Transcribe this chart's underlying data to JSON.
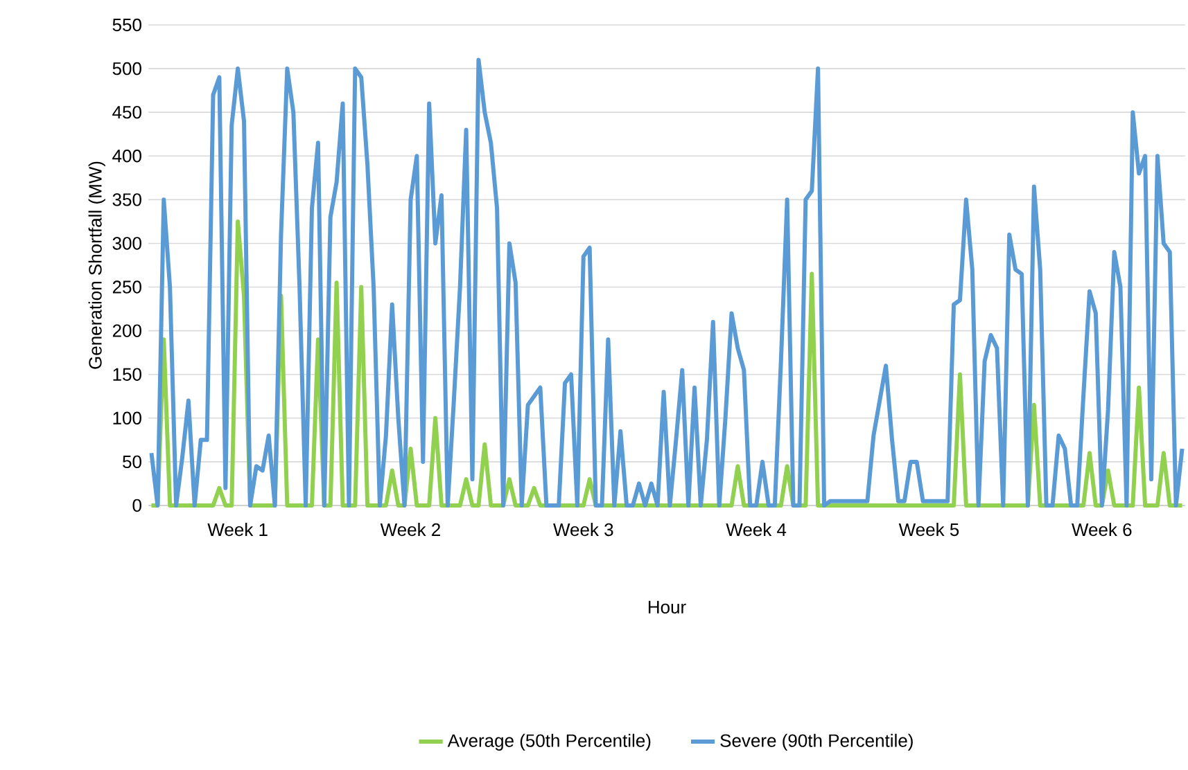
{
  "chart_data": {
    "type": "line",
    "xlabel": "Hour",
    "ylabel": "Generation Shortfall (MW)",
    "categories": [
      null,
      null,
      null,
      null,
      null,
      null,
      null,
      null,
      null,
      null,
      null,
      null,
      null,
      null,
      "Week 1",
      null,
      null,
      null,
      null,
      null,
      null,
      null,
      null,
      null,
      null,
      null,
      null,
      null,
      null,
      null,
      null,
      null,
      null,
      null,
      null,
      null,
      null,
      null,
      null,
      null,
      null,
      null,
      "Week 2",
      null,
      null,
      null,
      null,
      null,
      null,
      null,
      null,
      null,
      null,
      null,
      null,
      null,
      null,
      null,
      null,
      null,
      null,
      null,
      null,
      null,
      null,
      null,
      null,
      null,
      null,
      null,
      "Week 3",
      null,
      null,
      null,
      null,
      null,
      null,
      null,
      null,
      null,
      null,
      null,
      null,
      null,
      null,
      null,
      null,
      null,
      null,
      null,
      null,
      null,
      null,
      null,
      null,
      null,
      null,
      null,
      "Week 4",
      null,
      null,
      null,
      null,
      null,
      null,
      null,
      null,
      null,
      null,
      null,
      null,
      null,
      null,
      null,
      null,
      null,
      null,
      null,
      null,
      null,
      null,
      null,
      null,
      null,
      null,
      null,
      "Week 5",
      null,
      null,
      null,
      null,
      null,
      null,
      null,
      null,
      null,
      null,
      null,
      null,
      null,
      null,
      null,
      null,
      null,
      null,
      null,
      null,
      null,
      null,
      null,
      null,
      null,
      null,
      null,
      "Week 6",
      null,
      null,
      null,
      null,
      null,
      null,
      null,
      null,
      null,
      null,
      null,
      null,
      null
    ],
    "ylim": [
      0,
      550
    ],
    "yticks": [
      0,
      50,
      100,
      150,
      200,
      250,
      300,
      350,
      400,
      450,
      500,
      550
    ],
    "grid": "y",
    "legend": "bottom",
    "series": [
      {
        "name": "Average (50th Percentile)",
        "color": "#92d050",
        "values": [
          0,
          0,
          190,
          0,
          0,
          0,
          0,
          0,
          0,
          0,
          0,
          20,
          0,
          0,
          325,
          240,
          0,
          0,
          0,
          0,
          0,
          240,
          0,
          0,
          0,
          0,
          0,
          190,
          0,
          0,
          255,
          0,
          0,
          0,
          250,
          0,
          0,
          0,
          0,
          40,
          0,
          0,
          65,
          0,
          0,
          0,
          100,
          0,
          0,
          0,
          0,
          30,
          0,
          0,
          70,
          0,
          0,
          0,
          30,
          0,
          0,
          0,
          20,
          0,
          0,
          0,
          0,
          0,
          0,
          0,
          0,
          30,
          0,
          0,
          0,
          0,
          0,
          0,
          0,
          0,
          0,
          0,
          0,
          0,
          0,
          0,
          0,
          0,
          0,
          0,
          0,
          0,
          0,
          0,
          0,
          45,
          0,
          0,
          0,
          0,
          0,
          0,
          0,
          45,
          0,
          0,
          0,
          265,
          0,
          0,
          0,
          0,
          0,
          0,
          0,
          0,
          0,
          0,
          0,
          0,
          0,
          0,
          0,
          0,
          0,
          0,
          0,
          0,
          0,
          0,
          0,
          150,
          0,
          0,
          0,
          0,
          0,
          0,
          0,
          0,
          0,
          0,
          0,
          115,
          0,
          0,
          0,
          0,
          0,
          0,
          0,
          0,
          60,
          0,
          0,
          40,
          0,
          0,
          0,
          0,
          135,
          0,
          0,
          0,
          60,
          0,
          0,
          0
        ]
      },
      {
        "name": "Severe (90th Percentile)",
        "color": "#5b9bd5",
        "values": [
          60,
          0,
          350,
          250,
          0,
          55,
          120,
          0,
          75,
          75,
          470,
          490,
          20,
          435,
          500,
          440,
          0,
          45,
          40,
          80,
          0,
          310,
          500,
          450,
          250,
          0,
          340,
          415,
          0,
          330,
          370,
          460,
          0,
          500,
          490,
          390,
          250,
          0,
          80,
          230,
          100,
          0,
          350,
          400,
          50,
          460,
          300,
          355,
          0,
          120,
          250,
          430,
          30,
          510,
          450,
          415,
          340,
          0,
          300,
          255,
          0,
          115,
          125,
          135,
          0,
          0,
          0,
          140,
          150,
          0,
          285,
          295,
          0,
          0,
          190,
          0,
          85,
          0,
          0,
          25,
          0,
          25,
          0,
          130,
          0,
          75,
          155,
          0,
          135,
          0,
          75,
          210,
          0,
          100,
          220,
          180,
          155,
          0,
          0,
          50,
          0,
          0,
          165,
          350,
          0,
          0,
          350,
          360,
          500,
          0,
          5,
          5,
          5,
          5,
          5,
          5,
          5,
          80,
          120,
          160,
          75,
          5,
          5,
          50,
          50,
          5,
          5,
          5,
          5,
          5,
          230,
          235,
          350,
          270,
          0,
          165,
          195,
          180,
          0,
          310,
          270,
          265,
          0,
          365,
          270,
          0,
          0,
          80,
          65,
          0,
          0,
          125,
          245,
          220,
          0,
          110,
          290,
          250,
          0,
          450,
          380,
          400,
          30,
          400,
          300,
          290,
          0,
          65
        ]
      }
    ]
  }
}
